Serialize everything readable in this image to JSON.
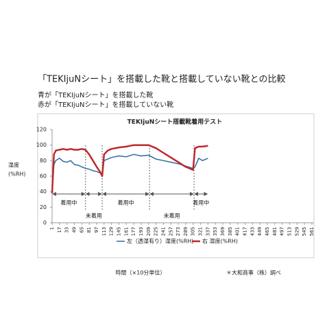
{
  "header": {
    "title": "「TEKIjuNシート」を搭載した靴と搭載していない靴との比較",
    "lines": [
      {
        "text": "赤が「TEKIjuNシート」を搭載していない靴",
        "color": "#c0272d"
      },
      {
        "text": "青が「TEKIjuNシート」を搭載した靴",
        "color": "#2e5f8e"
      }
    ]
  },
  "chart_data": {
    "type": "line",
    "title": "TEKIjuNシート搭載靴着用テスト",
    "ylabel": [
      "湿度",
      "(%RH)"
    ],
    "xlabel": "時間（×10分単位）",
    "source": "＊大和商事（株）調べ",
    "x": [
      1,
      5,
      9,
      17,
      25,
      33,
      41,
      49,
      57,
      65,
      73,
      81,
      89,
      97,
      105,
      109,
      113,
      121,
      129,
      145,
      161,
      177,
      193,
      209,
      225,
      241,
      257,
      273,
      289,
      305,
      309,
      317,
      325,
      337
    ],
    "series": [
      {
        "name": "左（透湿有り）湿度(%RH)",
        "color": "#2e6a9e",
        "values": [
          38,
          75,
          80,
          83,
          79,
          78,
          80,
          75,
          74,
          72,
          70,
          69,
          67,
          66,
          64,
          62,
          80,
          82,
          84,
          86,
          85,
          88,
          86,
          87,
          82,
          80,
          78,
          76,
          73,
          70,
          72,
          83,
          80,
          83
        ]
      },
      {
        "name": "右 湿度(%RH)",
        "color": "#c0272d",
        "values": [
          38,
          88,
          93,
          94,
          95,
          94,
          95,
          94,
          94,
          95,
          94,
          88,
          80,
          72,
          65,
          60,
          88,
          93,
          95,
          97,
          98,
          100,
          100,
          100,
          96,
          90,
          84,
          78,
          72,
          68,
          96,
          98,
          98,
          99
        ]
      }
    ],
    "xlim": [
      1,
      561
    ],
    "xticks": [
      1,
      17,
      33,
      49,
      65,
      81,
      97,
      113,
      129,
      145,
      161,
      177,
      193,
      209,
      225,
      241,
      257,
      273,
      289,
      305,
      321,
      337,
      353,
      369,
      385,
      401,
      417,
      433,
      449,
      465,
      481,
      497,
      513,
      529,
      545,
      561
    ],
    "ylim": [
      0,
      120
    ],
    "yticks": [
      0,
      20,
      40,
      60,
      80,
      100,
      120
    ],
    "phase_bounds": [
      1,
      73,
      109,
      211,
      307,
      337
    ],
    "phase_labels": [
      "着用中",
      "未着用",
      "着用中",
      "未着用",
      "着用中"
    ]
  }
}
